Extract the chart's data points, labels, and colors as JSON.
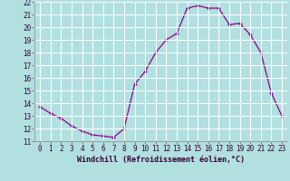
{
  "x": [
    0,
    1,
    2,
    3,
    4,
    5,
    6,
    7,
    8,
    9,
    10,
    11,
    12,
    13,
    14,
    15,
    16,
    17,
    18,
    19,
    20,
    21,
    22,
    23
  ],
  "y": [
    13.7,
    13.2,
    12.8,
    12.2,
    11.8,
    11.5,
    11.4,
    11.3,
    12.0,
    15.5,
    16.5,
    18.0,
    19.0,
    19.5,
    21.5,
    21.7,
    21.5,
    21.5,
    20.2,
    20.3,
    19.4,
    18.0,
    14.8,
    13.0
  ],
  "xlabel": "Windchill (Refroidissement éolien,°C)",
  "ylim": [
    11,
    22
  ],
  "yticks": [
    11,
    12,
    13,
    14,
    15,
    16,
    17,
    18,
    19,
    20,
    21,
    22
  ],
  "xticks": [
    0,
    1,
    2,
    3,
    4,
    5,
    6,
    7,
    8,
    9,
    10,
    11,
    12,
    13,
    14,
    15,
    16,
    17,
    18,
    19,
    20,
    21,
    22,
    23
  ],
  "line_color": "#8B008B",
  "marker_color": "#8B008B",
  "bg_color": "#b2e0e0",
  "grid_color": "#c0d8d8",
  "tick_label_fontsize": 5.5,
  "xlabel_fontsize": 6.0
}
